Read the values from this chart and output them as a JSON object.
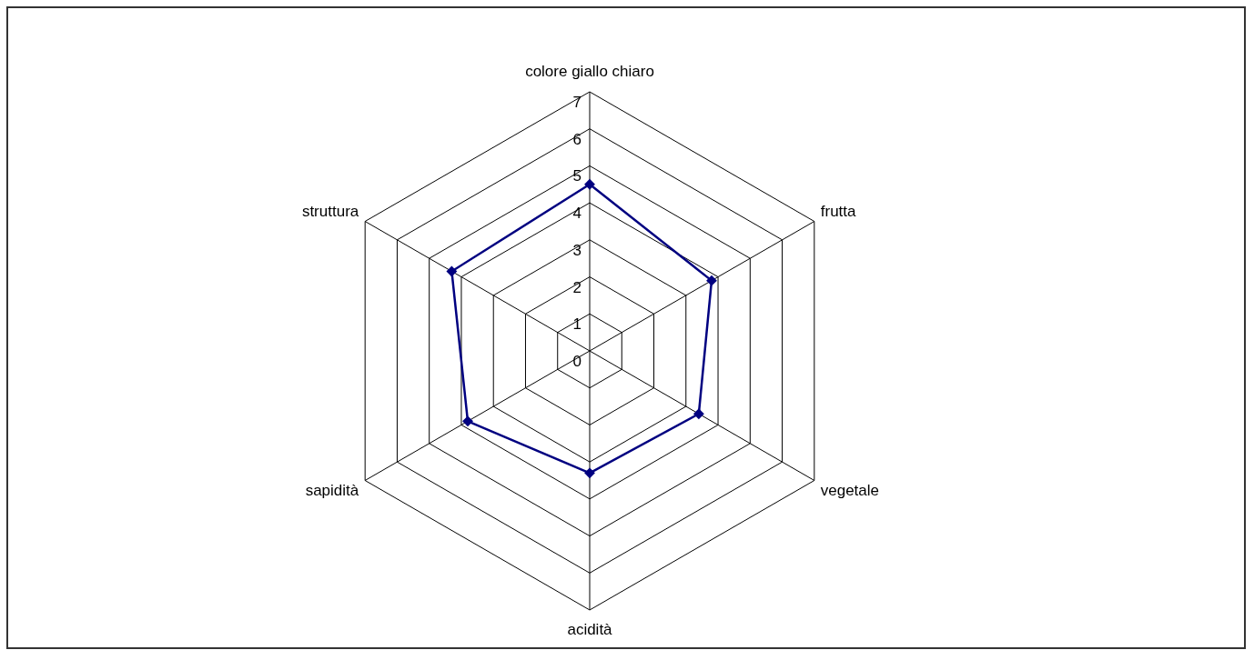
{
  "chart_data": {
    "type": "radar",
    "categories": [
      "colore giallo chiaro",
      "frutta",
      "vegetale",
      "acidità",
      "sapidità",
      "struttura"
    ],
    "series": [
      {
        "color": "#000080",
        "values": [
          4.5,
          3.8,
          3.4,
          3.3,
          3.8,
          4.3
        ]
      }
    ],
    "ylim": [
      0,
      7
    ],
    "yticks": [
      0,
      1,
      2,
      3,
      4,
      5,
      6,
      7
    ],
    "grid": true,
    "marker": "diamond",
    "line_style": "solid"
  }
}
